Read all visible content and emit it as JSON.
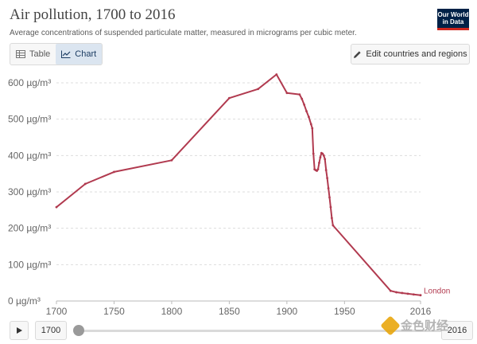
{
  "header": {
    "title": "Air pollution, 1700 to 2016",
    "subtitle": "Average concentrations of suspended particulate matter, measured in micrograms per cubic meter.",
    "logo_line1": "Our World",
    "logo_line2": "in Data"
  },
  "tabs": [
    {
      "label": "Table",
      "icon": "table-icon",
      "active": false
    },
    {
      "label": "Chart",
      "icon": "line-chart-icon",
      "active": true
    }
  ],
  "edit_button": {
    "label": "Edit countries and regions",
    "icon": "pencil-icon"
  },
  "timeline": {
    "start_label": "1700",
    "end_label": "2016",
    "play_icon": "play-icon"
  },
  "watermark": {
    "text": "金色财经"
  },
  "colors": {
    "series": "#b13a4f",
    "grid": "#dddddd",
    "axis_text": "#666666"
  },
  "chart_data": {
    "type": "line",
    "title": "Air pollution, 1700 to 2016",
    "subtitle": "Average concentrations of suspended particulate matter, measured in micrograms per cubic meter.",
    "xlabel": "",
    "ylabel": "",
    "xlim": [
      1700,
      2016
    ],
    "ylim": [
      0,
      600
    ],
    "x_ticks": [
      1700,
      1750,
      1800,
      1850,
      1900,
      1950,
      2016
    ],
    "y_ticks": [
      {
        "value": 0,
        "label": "0 µg/m³"
      },
      {
        "value": 100,
        "label": "100 µg/m³"
      },
      {
        "value": 200,
        "label": "200 µg/m³"
      },
      {
        "value": 300,
        "label": "300 µg/m³"
      },
      {
        "value": 400,
        "label": "400 µg/m³"
      },
      {
        "value": 500,
        "label": "500 µg/m³"
      },
      {
        "value": 600,
        "label": "600 µg/m³"
      }
    ],
    "grid": "horizontal dashed",
    "series": [
      {
        "name": "London",
        "color": "#b13a4f",
        "points": [
          [
            1700,
            258
          ],
          [
            1725,
            322
          ],
          [
            1750,
            355
          ],
          [
            1800,
            387
          ],
          [
            1850,
            558
          ],
          [
            1875,
            583
          ],
          [
            1891,
            623
          ],
          [
            1900,
            572
          ],
          [
            1911,
            568
          ],
          [
            1913,
            556
          ],
          [
            1915,
            540
          ],
          [
            1917,
            522
          ],
          [
            1919,
            506
          ],
          [
            1921,
            486
          ],
          [
            1922,
            475
          ],
          [
            1923,
            405
          ],
          [
            1924,
            362
          ],
          [
            1925,
            360
          ],
          [
            1926,
            358
          ],
          [
            1927,
            362
          ],
          [
            1928,
            380
          ],
          [
            1929,
            395
          ],
          [
            1930,
            407
          ],
          [
            1931,
            405
          ],
          [
            1932,
            400
          ],
          [
            1933,
            390
          ],
          [
            1934,
            360
          ],
          [
            1935,
            338
          ],
          [
            1936,
            310
          ],
          [
            1937,
            285
          ],
          [
            1938,
            258
          ],
          [
            1939,
            228
          ],
          [
            1940,
            208
          ],
          [
            1990,
            28
          ],
          [
            1995,
            24
          ],
          [
            2000,
            22
          ],
          [
            2005,
            20
          ],
          [
            2010,
            18
          ],
          [
            2016,
            16
          ]
        ]
      }
    ]
  }
}
